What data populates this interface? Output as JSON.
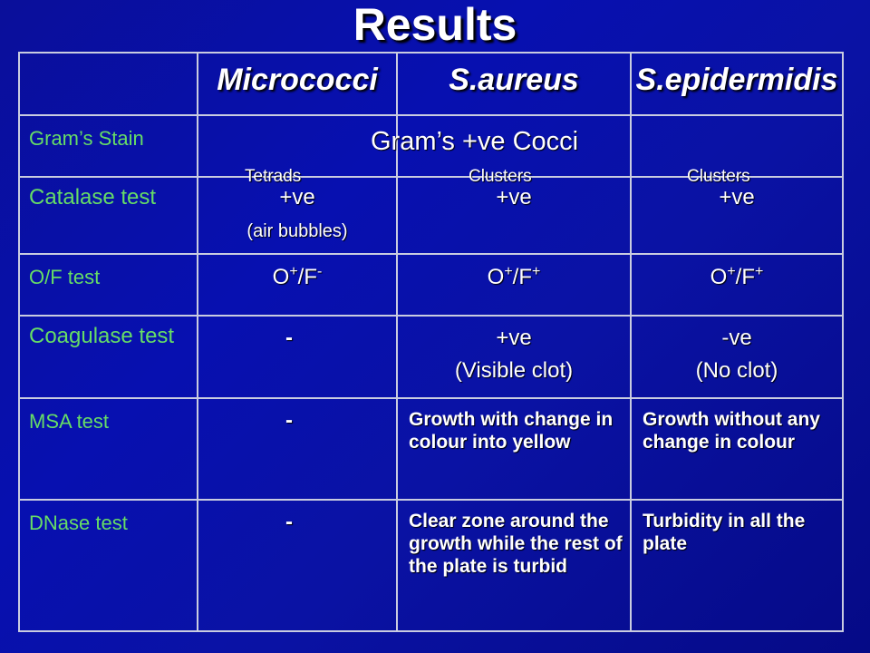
{
  "title": "Results",
  "columns": [
    "",
    "Micrococci",
    "S.aureus",
    "S.epidermidis"
  ],
  "rows": {
    "grams": {
      "label": "Gram’s Stain",
      "merged": "Gram’s +ve Cocci",
      "shapes": [
        "Tetrads",
        "Clusters",
        "Clusters"
      ]
    },
    "catalase": {
      "label": "Catalase test",
      "values": [
        "+ve",
        "+ve",
        "+ve"
      ],
      "note": "(air bubbles)"
    },
    "of": {
      "label": "O/F test",
      "values": [
        {
          "o": "O",
          "os": "+",
          "f": "F",
          "fs": "-"
        },
        {
          "o": "O",
          "os": "+",
          "f": "F",
          "fs": "+"
        },
        {
          "o": "O",
          "os": "+",
          "f": "F",
          "fs": "+"
        }
      ]
    },
    "coagulase": {
      "label": "Coagulase test",
      "values": [
        "-",
        "+ve",
        "-ve"
      ],
      "notes": [
        "",
        "(Visible clot)",
        "(No clot)"
      ]
    },
    "msa": {
      "label": "MSA test",
      "values": [
        "-",
        "Growth with change in colour into yellow",
        "Growth without any change in colour"
      ]
    },
    "dnase": {
      "label": "DNase test",
      "values": [
        "-",
        "Clear zone around the growth while the rest of the plate is turbid",
        "Turbidity in all the plate"
      ]
    }
  },
  "colors": {
    "background": "#0710b0",
    "row_label": "#66dd66",
    "text": "#ffffff",
    "grid": "#c9cce0"
  }
}
